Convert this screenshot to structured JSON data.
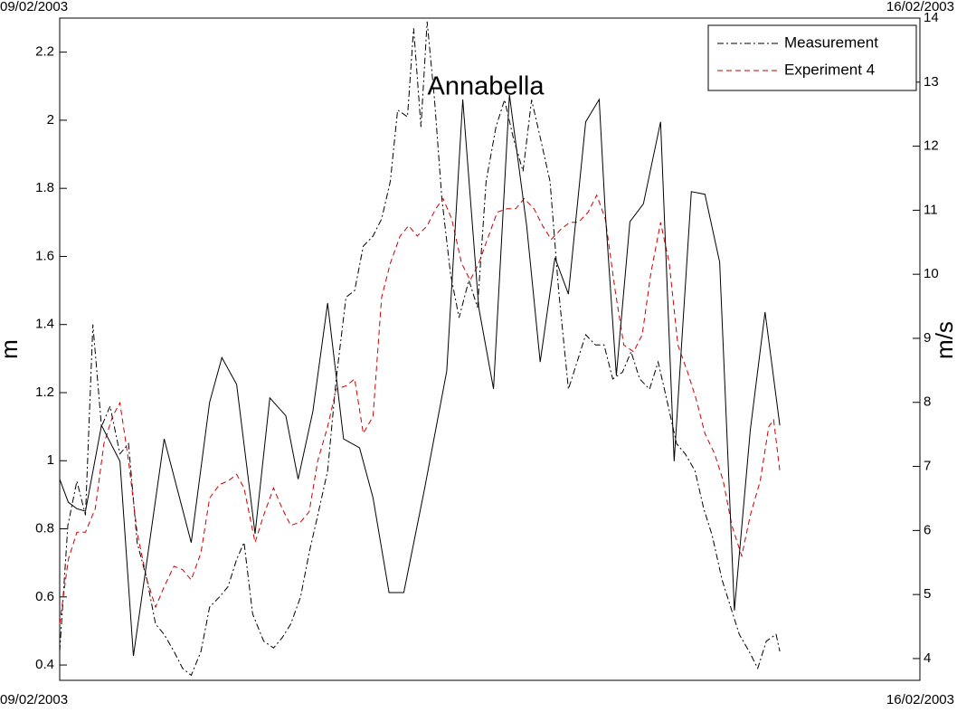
{
  "chart_data": {
    "type": "line",
    "title": "Annabella",
    "ylabel": "m",
    "y2label": "m/s",
    "xlim": [
      0,
      7
    ],
    "xticks": [
      {
        "value": 0,
        "label": "09/02/2003"
      },
      {
        "value": 7,
        "label": "16/02/2003"
      }
    ],
    "ylim": [
      0.355,
      2.3
    ],
    "yticks": [
      0.4,
      0.6,
      0.8,
      1,
      1.2,
      1.4,
      1.6,
      1.8,
      2,
      2.2
    ],
    "y2lim": [
      3.66,
      14
    ],
    "y2ticks": [
      4,
      5,
      6,
      7,
      8,
      9,
      10,
      11,
      12,
      13,
      14
    ],
    "legend": "upper right",
    "series": [
      {
        "name": "Measurement",
        "color": "#000000",
        "dash": "dashdot",
        "x": [
          0,
          0.066,
          0.14,
          0.21,
          0.27,
          0.34,
          0.41,
          0.49,
          0.56,
          0.63,
          0.71,
          0.78,
          0.85,
          0.93,
          1.0,
          1.07,
          1.15,
          1.22,
          1.3,
          1.37,
          1.44,
          1.5,
          1.57,
          1.66,
          1.74,
          1.81,
          1.88,
          1.96,
          2.03,
          2.1,
          2.18,
          2.25,
          2.33,
          2.4,
          2.47,
          2.55,
          2.62,
          2.69,
          2.75,
          2.83,
          2.88,
          2.94,
          2.99,
          3.05,
          3.11,
          3.18,
          3.25,
          3.33,
          3.4,
          3.47,
          3.55,
          3.62,
          3.69,
          3.77,
          3.84,
          3.91,
          3.99,
          4.06,
          4.14,
          4.21,
          4.28,
          4.36,
          4.43,
          4.5,
          4.58,
          4.65,
          4.72,
          4.8,
          4.87,
          4.94,
          5.02,
          5.09,
          5.17,
          5.24,
          5.31,
          5.39,
          5.46,
          5.53,
          5.61,
          5.68,
          5.75,
          5.83,
          5.86
        ],
        "values": [
          0.44,
          0.81,
          0.94,
          0.84,
          1.4,
          1.1,
          1.16,
          1.02,
          1.05,
          0.76,
          0.65,
          0.52,
          0.49,
          0.44,
          0.39,
          0.37,
          0.44,
          0.57,
          0.6,
          0.63,
          0.71,
          0.76,
          0.55,
          0.47,
          0.45,
          0.48,
          0.52,
          0.6,
          0.73,
          0.84,
          0.97,
          1.24,
          1.48,
          1.5,
          1.63,
          1.66,
          1.71,
          1.82,
          2.03,
          2.01,
          2.27,
          1.98,
          2.29,
          2.06,
          1.77,
          1.55,
          1.42,
          1.53,
          1.45,
          1.82,
          1.98,
          2.06,
          1.95,
          1.85,
          2.06,
          1.95,
          1.82,
          1.5,
          1.21,
          1.29,
          1.37,
          1.34,
          1.34,
          1.24,
          1.26,
          1.32,
          1.24,
          1.21,
          1.29,
          1.18,
          1.05,
          1.02,
          0.97,
          0.86,
          0.78,
          0.65,
          0.57,
          0.49,
          0.44,
          0.39,
          0.47,
          0.49,
          0.44
        ]
      },
      {
        "name": "Experiment 4",
        "color": "#cc0000",
        "dash": "dashed",
        "x": [
          0,
          0.07,
          0.14,
          0.21,
          0.29,
          0.36,
          0.43,
          0.49,
          0.56,
          0.63,
          0.71,
          0.78,
          0.85,
          0.93,
          1.0,
          1.07,
          1.15,
          1.22,
          1.3,
          1.37,
          1.44,
          1.5,
          1.59,
          1.66,
          1.74,
          1.81,
          1.88,
          1.96,
          2.03,
          2.1,
          2.18,
          2.25,
          2.33,
          2.4,
          2.47,
          2.55,
          2.62,
          2.69,
          2.77,
          2.84,
          2.91,
          2.99,
          3.06,
          3.12,
          3.19,
          3.27,
          3.34,
          3.41,
          3.49,
          3.56,
          3.64,
          3.71,
          3.78,
          3.86,
          3.93,
          4.0,
          4.08,
          4.15,
          4.22,
          4.3,
          4.37,
          4.44,
          4.52,
          4.59,
          4.67,
          4.74,
          4.81,
          4.89,
          4.96,
          5.03,
          5.11,
          5.18,
          5.25,
          5.33,
          5.4,
          5.47,
          5.55,
          5.62,
          5.7,
          5.77,
          5.81,
          5.86
        ],
        "values": [
          0.52,
          0.71,
          0.79,
          0.79,
          0.86,
          1.05,
          1.13,
          1.17,
          1.0,
          0.79,
          0.65,
          0.57,
          0.63,
          0.69,
          0.68,
          0.65,
          0.73,
          0.89,
          0.93,
          0.94,
          0.96,
          0.92,
          0.76,
          0.84,
          0.92,
          0.86,
          0.81,
          0.82,
          0.85,
          1.0,
          1.1,
          1.21,
          1.22,
          1.24,
          1.08,
          1.13,
          1.48,
          1.58,
          1.66,
          1.69,
          1.66,
          1.69,
          1.74,
          1.77,
          1.71,
          1.58,
          1.53,
          1.58,
          1.66,
          1.73,
          1.74,
          1.74,
          1.77,
          1.74,
          1.69,
          1.65,
          1.68,
          1.7,
          1.7,
          1.73,
          1.78,
          1.71,
          1.5,
          1.34,
          1.32,
          1.37,
          1.55,
          1.7,
          1.58,
          1.34,
          1.26,
          1.18,
          1.08,
          1.02,
          0.94,
          0.81,
          0.72,
          0.84,
          0.94,
          1.1,
          1.12,
          0.97
        ]
      },
      {
        "color": "#000000",
        "dash": "solid",
        "axis": "y2",
        "x": [
          0,
          0.07,
          0.14,
          0.21,
          0.34,
          0.49,
          0.6,
          0.71,
          0.85,
          1.07,
          1.22,
          1.32,
          1.44,
          1.59,
          1.71,
          1.84,
          1.94,
          2.06,
          2.18,
          2.31,
          2.44,
          2.55,
          2.68,
          2.8,
          2.97,
          3.15,
          3.28,
          3.41,
          3.53,
          3.66,
          3.8,
          3.91,
          4.03,
          4.14,
          4.28,
          4.39,
          4.44,
          4.53,
          4.64,
          4.75,
          4.89,
          5.0,
          5.14,
          5.25,
          5.37,
          5.49,
          5.62,
          5.74,
          5.86
        ],
        "values": [
          6.8,
          6.44,
          6.34,
          6.3,
          7.64,
          7.08,
          4.04,
          5.53,
          7.43,
          5.81,
          8.0,
          8.7,
          8.28,
          5.95,
          8.07,
          7.79,
          6.8,
          7.86,
          9.55,
          7.43,
          7.29,
          6.51,
          5.03,
          5.03,
          6.66,
          8.49,
          12.73,
          9.48,
          8.21,
          12.8,
          10.75,
          8.63,
          10.26,
          9.69,
          12.38,
          12.73,
          10.96,
          8.42,
          10.82,
          11.1,
          12.38,
          7.08,
          11.29,
          11.25,
          10.19,
          4.75,
          7.57,
          9.41,
          7.64
        ]
      }
    ]
  }
}
